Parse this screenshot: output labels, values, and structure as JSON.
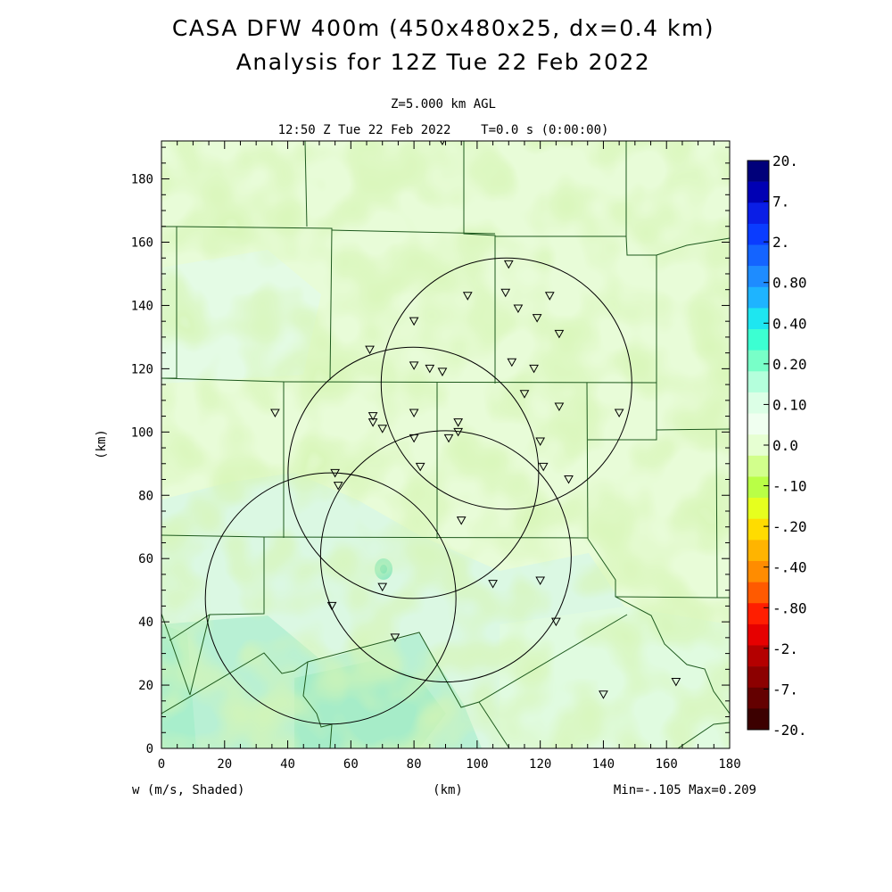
{
  "chart_data": {
    "type": "heatmap",
    "title": "CASA DFW 400m (450x480x25, dx=0.4 km)",
    "subtitle": "Analysis for 12Z Tue 22 Feb 2022",
    "level_label": "Z=5.000 km AGL",
    "time_label": "12:50 Z Tue 22 Feb 2022    T=0.0 s (0:00:00)",
    "xlabel": "(km)",
    "ylabel": "(km)",
    "field_label": "w (m/s, Shaded)",
    "minmax_label": "Min=-.105 Max=0.209",
    "xlim": [
      0,
      180
    ],
    "ylim": [
      0,
      192
    ],
    "x_ticks": [
      "0",
      "20",
      "40",
      "60",
      "80",
      "100",
      "120",
      "140",
      "160",
      "180"
    ],
    "y_ticks": [
      "0",
      "20",
      "40",
      "60",
      "80",
      "100",
      "120",
      "140",
      "160",
      "180"
    ],
    "colorbar": {
      "labels": [
        "20.",
        "7.",
        "2.",
        "0.80",
        "0.40",
        "0.20",
        "0.10",
        "0.0",
        "-.10",
        "-.20",
        "-.40",
        "-.80",
        "-2.",
        "-7.",
        "-20."
      ],
      "colors": [
        "#00007a",
        "#0000b4",
        "#0a1ee6",
        "#0a3cff",
        "#1464ff",
        "#1e8cff",
        "#1eb4ff",
        "#1ee6f0",
        "#3cffd2",
        "#78ffc8",
        "#b4ffdc",
        "#dcffe6",
        "#f0fff0",
        "#e6ffd2",
        "#d2ff8c",
        "#b9ff46",
        "#e6ff1e",
        "#ffdc00",
        "#ffb400",
        "#ff8c00",
        "#ff5a00",
        "#ff1e00",
        "#e60000",
        "#b40000",
        "#8c0000",
        "#640000",
        "#3c0000"
      ]
    },
    "radar_circles_km": [
      {
        "cx": 109.3,
        "cy": 115.3,
        "r": 39.7
      },
      {
        "cx": 79.8,
        "cy": 87.1,
        "r": 39.7
      },
      {
        "cx": 90.1,
        "cy": 60.7,
        "r": 39.7
      },
      {
        "cx": 53.6,
        "cy": 47.4,
        "r": 39.7
      }
    ],
    "station_markers_km": [
      [
        89,
        192
      ],
      [
        110,
        153
      ],
      [
        97,
        143
      ],
      [
        109,
        144
      ],
      [
        113,
        139
      ],
      [
        123,
        143
      ],
      [
        80,
        135
      ],
      [
        119,
        136
      ],
      [
        126,
        131
      ],
      [
        66,
        126
      ],
      [
        80,
        121
      ],
      [
        85,
        120
      ],
      [
        89,
        119
      ],
      [
        111,
        122
      ],
      [
        118,
        120
      ],
      [
        115,
        112
      ],
      [
        126,
        108
      ],
      [
        145,
        106
      ],
      [
        36,
        106
      ],
      [
        67,
        105
      ],
      [
        67,
        103
      ],
      [
        70,
        101
      ],
      [
        80,
        106
      ],
      [
        94,
        103
      ],
      [
        80,
        98
      ],
      [
        91,
        98
      ],
      [
        94,
        100
      ],
      [
        120,
        97
      ],
      [
        121,
        89
      ],
      [
        129,
        85
      ],
      [
        82,
        89
      ],
      [
        55,
        87
      ],
      [
        56,
        83
      ],
      [
        95,
        72
      ],
      [
        70,
        51
      ],
      [
        105,
        52
      ],
      [
        120,
        53
      ],
      [
        54,
        45
      ],
      [
        125,
        40
      ],
      [
        74,
        35
      ],
      [
        140,
        17
      ],
      [
        163,
        21
      ]
    ],
    "grid": false
  }
}
